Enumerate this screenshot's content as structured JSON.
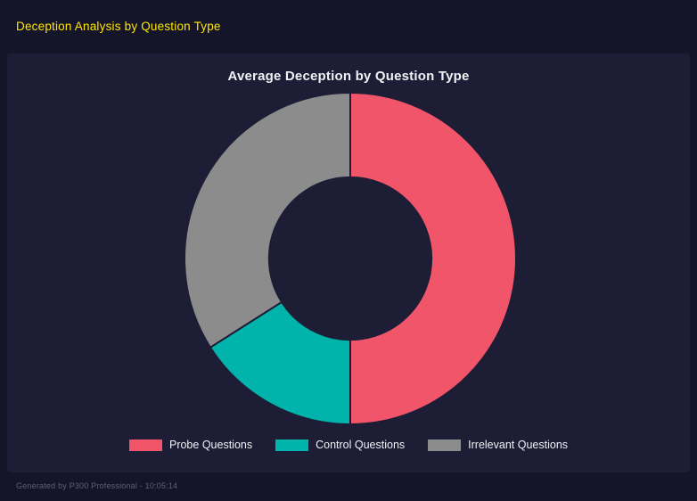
{
  "page": {
    "header": {
      "title": "Deception Analysis by Question Type",
      "color": "#ffe600"
    },
    "footer": {
      "text": "Generated by P300 Professional - 10:05:14"
    },
    "background": "#15152a",
    "panel_background": "#1d1d35"
  },
  "chart_data": {
    "type": "pie",
    "subtype": "donut",
    "title": "Average Deception by Question Type",
    "categories": [
      "Probe Questions",
      "Control Questions",
      "Irrelevant Questions"
    ],
    "values": [
      50,
      16,
      34
    ],
    "unit": "percent-of-circle",
    "colors": [
      "#f1556a",
      "#00b3ab",
      "#8c8c8c"
    ],
    "start_angle_deg": 0,
    "direction": "clockwise",
    "inner_radius_ratio": 0.49,
    "legend_position": "bottom",
    "grid": false
  }
}
